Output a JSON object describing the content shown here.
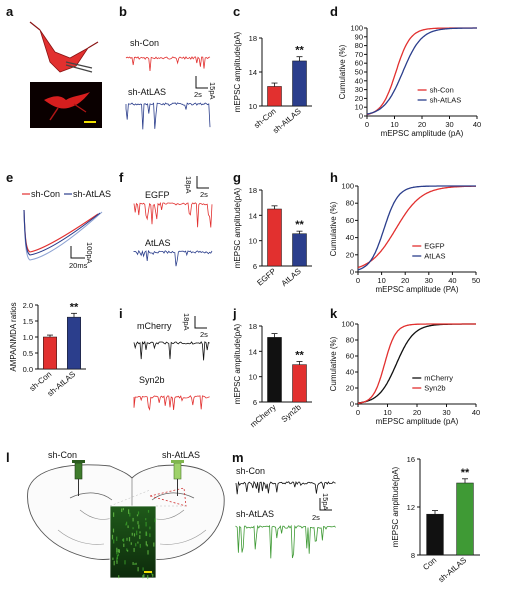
{
  "colors": {
    "red": "#e2302f",
    "navy": "#2b3e8c",
    "black": "#111111",
    "green": "#3f9a35",
    "light_red": "#f08a86",
    "light_blue": "#8ea3d3"
  },
  "panels": {
    "a": {
      "label": "a"
    },
    "b": {
      "label": "b",
      "trace1": "sh-Con",
      "trace2": "sh-AtLAS",
      "scale_y": "15pA",
      "scale_x": "2s"
    },
    "c": {
      "label": "c",
      "significance": "**"
    },
    "d": {
      "label": "d"
    },
    "e": {
      "label": "e",
      "legend1": "sh-Con",
      "legend2": "sh-AtLAS",
      "scale_y": "100pA",
      "scale_x": "20ms",
      "significance": "**"
    },
    "f": {
      "label": "f",
      "trace1": "EGFP",
      "trace2": "AtLAS",
      "scale_y": "18pA",
      "scale_x": "2s"
    },
    "g": {
      "label": "g",
      "significance": "**"
    },
    "h": {
      "label": "h"
    },
    "i": {
      "label": "i",
      "trace1": "mCherry",
      "trace2": "Syn2b",
      "scale_y": "18pA",
      "scale_x": "2s"
    },
    "j": {
      "label": "j",
      "significance": "**"
    },
    "k": {
      "label": "k"
    },
    "l": {
      "label": "l",
      "inj1": "sh-Con",
      "inj2": "sh-AtLAS"
    },
    "m": {
      "label": "m",
      "trace1": "sh-Con",
      "trace2": "sh-AtLAS",
      "scale_y": "15pA",
      "scale_x": "2s",
      "significance": "**"
    }
  },
  "chart_data": [
    {
      "panel": "c",
      "type": "bar",
      "categories": [
        "sh-Con",
        "sh-AtLAS"
      ],
      "values": [
        12.3,
        15.3
      ],
      "errors": [
        0.4,
        0.5
      ],
      "ylabel": "mEPSC amplitude(pA)",
      "ylim": [
        10,
        18
      ],
      "yticks": [
        "10",
        "14",
        "18"
      ],
      "bar_colors": [
        "#e2302f",
        "#2b3e8c"
      ]
    },
    {
      "panel": "d",
      "type": "line",
      "xlabel": "mEPSC amplitude (pA)",
      "ylabel": "Cumulative (%)",
      "xlim": [
        0,
        40
      ],
      "ylim": [
        0,
        100
      ],
      "xticks": [
        "0",
        "10",
        "20",
        "30",
        "40"
      ],
      "yticks": [
        "0",
        "10",
        "20",
        "30",
        "40",
        "50",
        "60",
        "70",
        "80",
        "90",
        "100"
      ],
      "series": [
        {
          "name": "sh-Con",
          "color": "#e2302f",
          "median": 10.5,
          "spread": 2.6
        },
        {
          "name": "sh-AtLAS",
          "color": "#2b3e8c",
          "median": 13.0,
          "spread": 3.4
        }
      ],
      "legend": "bottom-right"
    },
    {
      "panel": "e",
      "type": "bar",
      "categories": [
        "sh-Con",
        "sh-AtLAS"
      ],
      "values": [
        1.0,
        1.62
      ],
      "errors": [
        0.06,
        0.12
      ],
      "ylabel": "AMPA/NMDA ratios",
      "ylim": [
        0.0,
        2.0
      ],
      "yticks": [
        "0.0",
        "0.5",
        "1.0",
        "1.5",
        "2.0"
      ],
      "bar_colors": [
        "#e2302f",
        "#2b3e8c"
      ]
    },
    {
      "panel": "g",
      "type": "bar",
      "categories": [
        "EGFP",
        "AtLAS"
      ],
      "values": [
        15.0,
        11.1
      ],
      "errors": [
        0.5,
        0.4
      ],
      "ylabel": "mEPSC amplitude(pA)",
      "ylim": [
        6,
        18
      ],
      "yticks": [
        "6",
        "10",
        "14",
        "18"
      ],
      "bar_colors": [
        "#e2302f",
        "#2b3e8c"
      ]
    },
    {
      "panel": "h",
      "type": "line",
      "xlabel": "mEPSC amplitude (PA)",
      "ylabel": "Cumulative (%)",
      "xlim": [
        0,
        50
      ],
      "ylim": [
        0,
        100
      ],
      "xticks": [
        "0",
        "10",
        "20",
        "30",
        "40",
        "50"
      ],
      "yticks": [
        "0",
        "20",
        "40",
        "60",
        "80",
        "100"
      ],
      "series": [
        {
          "name": "EGFP",
          "color": "#e2302f",
          "median": 16.0,
          "spread": 5.5
        },
        {
          "name": "AtLAS",
          "color": "#2b3e8c",
          "median": 11.0,
          "spread": 3.0
        }
      ],
      "legend": "bottom-right"
    },
    {
      "panel": "j",
      "type": "bar",
      "categories": [
        "mCherry",
        "Syn2b"
      ],
      "values": [
        16.2,
        11.9
      ],
      "errors": [
        0.6,
        0.5
      ],
      "ylabel": "mEPSC amplitude(pA)",
      "ylim": [
        6,
        18
      ],
      "yticks": [
        "6",
        "10",
        "14",
        "18"
      ],
      "bar_colors": [
        "#111111",
        "#e2302f"
      ]
    },
    {
      "panel": "k",
      "type": "line",
      "xlabel": "mEPSC amplitude (pA)",
      "ylabel": "Cumulative (%)",
      "xlim": [
        0,
        40
      ],
      "ylim": [
        0,
        100
      ],
      "xticks": [
        "0",
        "10",
        "20",
        "30",
        "40"
      ],
      "yticks": [
        "0",
        "20",
        "40",
        "60",
        "80",
        "100"
      ],
      "series": [
        {
          "name": "mCherry",
          "color": "#111111",
          "median": 13.0,
          "spread": 3.0
        },
        {
          "name": "Syn2b",
          "color": "#e2302f",
          "median": 9.0,
          "spread": 1.9
        }
      ],
      "legend": "bottom-right"
    },
    {
      "panel": "m",
      "type": "bar",
      "categories": [
        "Con",
        "sh-AtLAS"
      ],
      "values": [
        11.4,
        14.0
      ],
      "errors": [
        0.3,
        0.35
      ],
      "ylabel": "mEPSC amplitude(pA)",
      "ylim": [
        8,
        16
      ],
      "yticks": [
        "8",
        "12",
        "16"
      ],
      "bar_colors": [
        "#111111",
        "#3f9a35"
      ]
    }
  ]
}
